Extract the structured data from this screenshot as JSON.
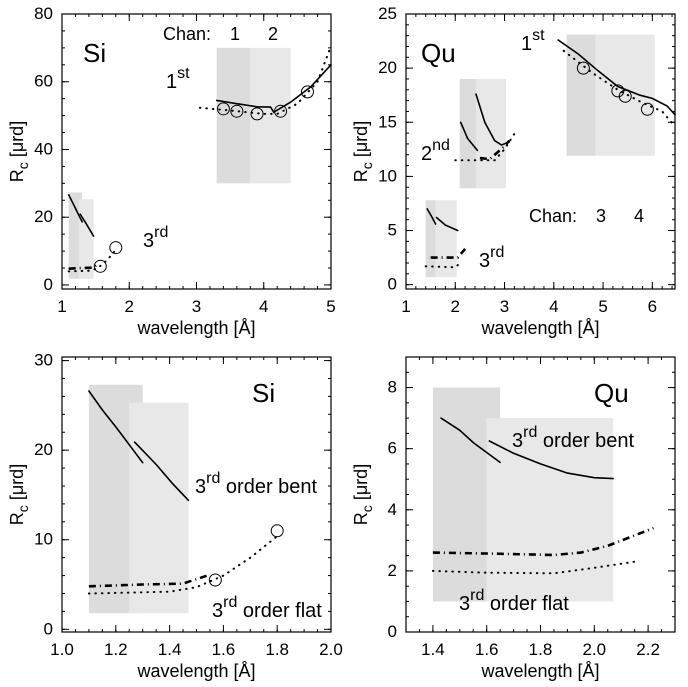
{
  "colors": {
    "shade_dark": "#dcdcdc",
    "shade_light": "#e8e8e8",
    "line": "#000000",
    "background": "#ffffff"
  },
  "chart_data": [
    {
      "type": "line",
      "label": "Si",
      "xlabel": "wavelength [Å]",
      "ylabel": {
        "main": "R",
        "sub": "c",
        "unit": " [μrd]"
      },
      "xlim": [
        1,
        5
      ],
      "ylim": [
        -1.2,
        80
      ],
      "xticks": [
        1,
        2,
        3,
        4,
        5
      ],
      "xtick_labels": [
        "1",
        "2",
        "3",
        "4",
        "5"
      ],
      "yticks": [
        0,
        20,
        40,
        60,
        80
      ],
      "ytick_labels": [
        "0",
        "20",
        "40",
        "60",
        "80"
      ],
      "regions": [
        {
          "x": [
            3.3,
            3.8
          ],
          "y": [
            30,
            70
          ],
          "shade": "dark"
        },
        {
          "x": [
            3.8,
            4.4
          ],
          "y": [
            30,
            70
          ],
          "shade": "light"
        },
        {
          "x": [
            1.1,
            1.3
          ],
          "y": [
            1.8,
            27.3
          ],
          "shade": "dark"
        },
        {
          "x": [
            1.25,
            1.47
          ],
          "y": [
            1.8,
            25.3
          ],
          "shade": "light"
        }
      ],
      "series": [
        {
          "style": "solid",
          "points": [
            [
              3.3,
              54.5
            ],
            [
              3.6,
              53.5
            ],
            [
              3.9,
              52.6
            ],
            [
              4.1,
              52.5
            ],
            [
              4.15,
              51
            ],
            [
              4.4,
              54
            ],
            [
              4.7,
              58.5
            ],
            [
              5,
              65
            ]
          ]
        },
        {
          "style": "dotted",
          "points": [
            [
              3.05,
              52.3
            ],
            [
              3.5,
              51.5
            ],
            [
              4,
              50.5
            ],
            [
              4.2,
              50.5
            ],
            [
              4.5,
              53.5
            ],
            [
              4.8,
              60
            ],
            [
              5,
              70.5
            ]
          ]
        },
        {
          "style": "solid",
          "points": [
            [
              1.1,
              26.6
            ],
            [
              1.2,
              22.6
            ],
            [
              1.25,
              20.6
            ],
            [
              1.3,
              18.6
            ]
          ]
        },
        {
          "style": "solid",
          "points": [
            [
              1.27,
              20.9
            ],
            [
              1.35,
              18.4
            ],
            [
              1.47,
              14.4
            ]
          ]
        },
        {
          "style": "dashdot",
          "points": [
            [
              1.1,
              4.8
            ],
            [
              1.3,
              5
            ],
            [
              1.45,
              5.1
            ],
            [
              1.55,
              6.1
            ]
          ]
        },
        {
          "style": "dotted",
          "points": [
            [
              1.1,
              4
            ],
            [
              1.4,
              4.2
            ],
            [
              1.5,
              4.7
            ],
            [
              1.6,
              6
            ],
            [
              1.7,
              8
            ],
            [
              1.8,
              10.4
            ]
          ]
        }
      ],
      "markers": [
        [
          3.4,
          52
        ],
        [
          3.6,
          51.3
        ],
        [
          3.9,
          50.5
        ],
        [
          4.25,
          51.3
        ],
        [
          4.65,
          57
        ],
        [
          1.57,
          5.5
        ],
        [
          1.8,
          11
        ]
      ],
      "annotations": [
        {
          "text": "Si",
          "sup": "",
          "tail": ""
        },
        {
          "text": "1",
          "sup": "st",
          "tail": ""
        },
        {
          "text": "3",
          "sup": "rd",
          "tail": ""
        },
        {
          "text": "Chan:",
          "sup": "",
          "tail": ""
        },
        {
          "text": "1",
          "sup": "",
          "tail": ""
        },
        {
          "text": "2",
          "sup": "",
          "tail": ""
        }
      ]
    },
    {
      "type": "line",
      "label": "Qu",
      "xlabel": "wavelength [Å]",
      "ylabel": {
        "main": "R",
        "sub": "c",
        "unit": " [μrd]"
      },
      "xlim": [
        1,
        6.46
      ],
      "ylim": [
        -0.4,
        25
      ],
      "xticks": [
        1,
        2,
        3,
        4,
        5,
        6
      ],
      "xtick_labels": [
        "1",
        "2",
        "3",
        "4",
        "5",
        "6"
      ],
      "yticks": [
        0,
        5,
        10,
        15,
        20,
        25
      ],
      "ytick_labels": [
        "0",
        "5",
        "10",
        "15",
        "20",
        "25"
      ],
      "regions": [
        {
          "x": [
            4.26,
            4.85
          ],
          "y": [
            11.9,
            23.1
          ],
          "shade": "dark"
        },
        {
          "x": [
            4.85,
            6.05
          ],
          "y": [
            11.9,
            23.1
          ],
          "shade": "light"
        },
        {
          "x": [
            2.09,
            2.42
          ],
          "y": [
            8.9,
            19
          ],
          "shade": "dark"
        },
        {
          "x": [
            2.42,
            3.03
          ],
          "y": [
            8.9,
            19
          ],
          "shade": "light"
        },
        {
          "x": [
            1.4,
            1.6
          ],
          "y": [
            0.7,
            7.8
          ],
          "shade": "dark"
        },
        {
          "x": [
            1.6,
            2.03
          ],
          "y": [
            0.7,
            7.8
          ],
          "shade": "light"
        }
      ],
      "series": [
        {
          "style": "solid",
          "points": [
            [
              4.09,
              22.6
            ],
            [
              4.5,
              21.3
            ],
            [
              4.9,
              19.75
            ],
            [
              5.3,
              18.3
            ],
            [
              5.75,
              17.5
            ],
            [
              6,
              17.2
            ],
            [
              6.3,
              16.5
            ],
            [
              6.46,
              15.7
            ]
          ]
        },
        {
          "style": "dotted",
          "points": [
            [
              4.2,
              21.6
            ],
            [
              4.8,
              19.5
            ],
            [
              5.3,
              18
            ],
            [
              5.8,
              16.8
            ],
            [
              6.2,
              16
            ],
            [
              6.46,
              14.6
            ]
          ]
        },
        {
          "style": "solid",
          "points": [
            [
              2.11,
              15
            ],
            [
              2.25,
              13.5
            ],
            [
              2.45,
              12.4
            ]
          ]
        },
        {
          "style": "solid",
          "points": [
            [
              2.42,
              17.6
            ],
            [
              2.6,
              15
            ],
            [
              2.8,
              13.3
            ],
            [
              2.94,
              12.9
            ],
            [
              3.1,
              13.2
            ]
          ]
        },
        {
          "style": "dotted",
          "points": [
            [
              2,
              11.5
            ],
            [
              2.8,
              11.5
            ],
            [
              3,
              12.5
            ],
            [
              3.25,
              14.3
            ]
          ]
        },
        {
          "style": "dashdot",
          "points": [
            [
              2.5,
              11.7
            ],
            [
              2.7,
              11.6
            ],
            [
              2.95,
              12.6
            ],
            [
              3.1,
              13.3
            ]
          ]
        },
        {
          "style": "solid",
          "points": [
            [
              1.43,
              7
            ],
            [
              1.52,
              6.3
            ],
            [
              1.6,
              5.6
            ]
          ]
        },
        {
          "style": "solid",
          "points": [
            [
              1.62,
              6.2
            ],
            [
              1.8,
              5.5
            ],
            [
              2.05,
              5
            ]
          ]
        },
        {
          "style": "dashdot",
          "points": [
            [
              1.5,
              2.5
            ],
            [
              2.05,
              2.5
            ],
            [
              2.2,
              3.3
            ]
          ]
        },
        {
          "style": "dotted",
          "points": [
            [
              1.4,
              1.7
            ],
            [
              2,
              1.6
            ],
            [
              2.1,
              2
            ]
          ]
        }
      ],
      "markers": [
        [
          4.6,
          20
        ],
        [
          5.3,
          17.9
        ],
        [
          5.45,
          17.4
        ],
        [
          5.9,
          16.2
        ]
      ],
      "annotations": [
        {
          "text": "Qu",
          "sup": "",
          "tail": ""
        },
        {
          "text": "1",
          "sup": "st",
          "tail": ""
        },
        {
          "text": "2",
          "sup": "nd",
          "tail": ""
        },
        {
          "text": "3",
          "sup": "rd",
          "tail": ""
        },
        {
          "text": "Chan:",
          "sup": "",
          "tail": ""
        },
        {
          "text": "3",
          "sup": "",
          "tail": ""
        },
        {
          "text": "4",
          "sup": "",
          "tail": ""
        }
      ]
    },
    {
      "type": "line",
      "label": "Si",
      "xlabel": "wavelength [Å]",
      "ylabel": {
        "main": "R",
        "sub": "c",
        "unit": " [μrd]"
      },
      "xlim": [
        1,
        2
      ],
      "ylim": [
        -0.3,
        30.4
      ],
      "xticks": [
        1.0,
        1.2,
        1.4,
        1.6,
        1.8,
        2.0
      ],
      "xtick_labels": [
        "1.0",
        "1.2",
        "1.4",
        "1.6",
        "1.8",
        "2.0"
      ],
      "yticks": [
        0,
        10,
        20,
        30
      ],
      "ytick_labels": [
        "0",
        "10",
        "20",
        "30"
      ],
      "regions": [
        {
          "x": [
            1.1,
            1.3
          ],
          "y": [
            1.8,
            27.3
          ],
          "shade": "dark"
        },
        {
          "x": [
            1.25,
            1.47
          ],
          "y": [
            1.8,
            25.3
          ],
          "shade": "light"
        }
      ],
      "series": [
        {
          "style": "solid",
          "points": [
            [
              1.1,
              26.6
            ],
            [
              1.15,
              24.5
            ],
            [
              1.2,
              22.6
            ],
            [
              1.25,
              20.6
            ],
            [
              1.3,
              18.6
            ]
          ]
        },
        {
          "style": "solid",
          "points": [
            [
              1.27,
              20.9
            ],
            [
              1.35,
              18.4
            ],
            [
              1.41,
              16.3
            ],
            [
              1.47,
              14.4
            ]
          ]
        },
        {
          "style": "dashdot",
          "points": [
            [
              1.1,
              4.8
            ],
            [
              1.3,
              5
            ],
            [
              1.45,
              5.1
            ],
            [
              1.55,
              6.1
            ]
          ]
        },
        {
          "style": "dotted",
          "points": [
            [
              1.1,
              4
            ],
            [
              1.4,
              4.2
            ],
            [
              1.5,
              4.7
            ],
            [
              1.6,
              6
            ],
            [
              1.7,
              8
            ],
            [
              1.8,
              10.4
            ]
          ]
        }
      ],
      "markers": [
        [
          1.57,
          5.5
        ],
        [
          1.8,
          11
        ]
      ],
      "annotations": [
        {
          "text": "Si",
          "sup": "",
          "tail": ""
        },
        {
          "text": "3",
          "sup": "rd",
          "tail": " order bent"
        },
        {
          "text": "3",
          "sup": "rd",
          "tail": " order flat"
        }
      ]
    },
    {
      "type": "line",
      "label": "Qu",
      "xlabel": "wavelength [Å]",
      "ylabel": {
        "main": "R",
        "sub": "c",
        "unit": " [μrd]"
      },
      "xlim": [
        1.3,
        2.3
      ],
      "ylim": [
        0,
        9
      ],
      "xticks": [
        1.4,
        1.6,
        1.8,
        2.0,
        2.2
      ],
      "xtick_labels": [
        "1.4",
        "1.6",
        "1.8",
        "2.0",
        "2.2"
      ],
      "yticks": [
        0,
        2,
        4,
        6,
        8
      ],
      "ytick_labels": [
        "0",
        "2",
        "4",
        "6",
        "8"
      ],
      "regions": [
        {
          "x": [
            1.4,
            1.65
          ],
          "y": [
            1,
            8
          ],
          "shade": "dark"
        },
        {
          "x": [
            1.6,
            2.07
          ],
          "y": [
            1,
            7
          ],
          "shade": "light"
        }
      ],
      "series": [
        {
          "style": "solid",
          "points": [
            [
              1.43,
              7
            ],
            [
              1.5,
              6.6
            ],
            [
              1.55,
              6.2
            ],
            [
              1.65,
              5.55
            ]
          ]
        },
        {
          "style": "solid",
          "points": [
            [
              1.61,
              6.25
            ],
            [
              1.7,
              5.85
            ],
            [
              1.8,
              5.5
            ],
            [
              1.9,
              5.2
            ],
            [
              2,
              5.05
            ],
            [
              2.07,
              5.02
            ]
          ]
        },
        {
          "style": "dashdot",
          "points": [
            [
              1.4,
              2.6
            ],
            [
              1.6,
              2.57
            ],
            [
              1.85,
              2.52
            ],
            [
              1.95,
              2.6
            ],
            [
              2.05,
              2.82
            ],
            [
              2.22,
              3.4
            ]
          ]
        },
        {
          "style": "dotted",
          "points": [
            [
              1.4,
              2
            ],
            [
              1.6,
              1.94
            ],
            [
              1.85,
              1.92
            ],
            [
              2,
              2.1
            ],
            [
              2.15,
              2.3
            ]
          ]
        }
      ],
      "markers": [],
      "annotations": [
        {
          "text": "Qu",
          "sup": "",
          "tail": ""
        },
        {
          "text": "3",
          "sup": "rd",
          "tail": " order bent"
        },
        {
          "text": "3",
          "sup": "rd",
          "tail": " order flat"
        }
      ]
    }
  ]
}
